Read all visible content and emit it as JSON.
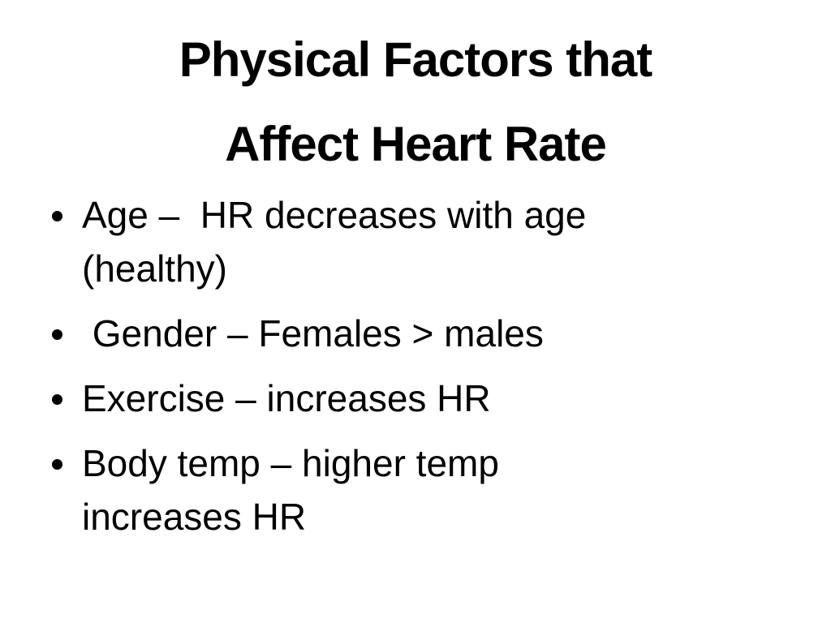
{
  "title": {
    "lines": [
      "Physical Factors that",
      "Affect Heart Rate"
    ]
  },
  "bullets": [
    {
      "lines": [
        "Age –  HR decreases with age",
        "(healthy)"
      ]
    },
    {
      "lines": [
        " Gender – Females > males"
      ]
    },
    {
      "lines": [
        "Exercise – increases HR"
      ]
    },
    {
      "lines": [
        "Body temp – higher temp",
        "increases HR"
      ]
    }
  ]
}
